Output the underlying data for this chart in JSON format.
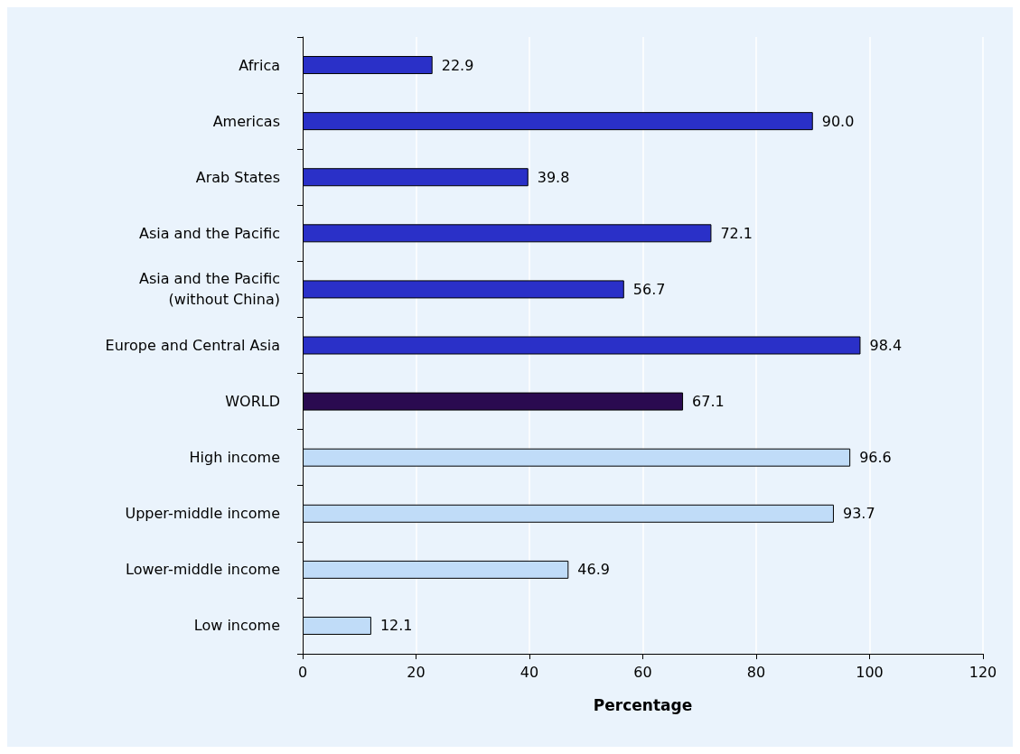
{
  "chart_data": {
    "type": "bar",
    "orientation": "horizontal",
    "xlabel": "Percentage",
    "categories": [
      "Africa",
      "Americas",
      "Arab States",
      "Asia and the Pacific",
      "Asia and the Pacific\n(without China)",
      "Europe and Central Asia",
      "WORLD",
      "High income",
      "Upper-middle income",
      "Lower-middle income",
      "Low income"
    ],
    "values": [
      22.9,
      90.0,
      39.8,
      72.1,
      56.7,
      98.4,
      67.1,
      96.6,
      93.7,
      46.9,
      12.1
    ],
    "colors": [
      "#2a30c8",
      "#2a30c8",
      "#2a30c8",
      "#2a30c8",
      "#2a30c8",
      "#2a30c8",
      "#2a0a50",
      "#c0dcf8",
      "#c0dcf8",
      "#c0dcf8",
      "#c0dcf8"
    ],
    "value_labels": [
      "22.9",
      "90.0",
      "39.8",
      "72.1",
      "56.7",
      "98.4",
      "67.1",
      "96.6",
      "93.7",
      "46.9",
      "12.1"
    ],
    "xlim": [
      0,
      120
    ],
    "xticks": [
      0,
      20,
      40,
      60,
      80,
      100,
      120
    ],
    "grid": "x"
  }
}
